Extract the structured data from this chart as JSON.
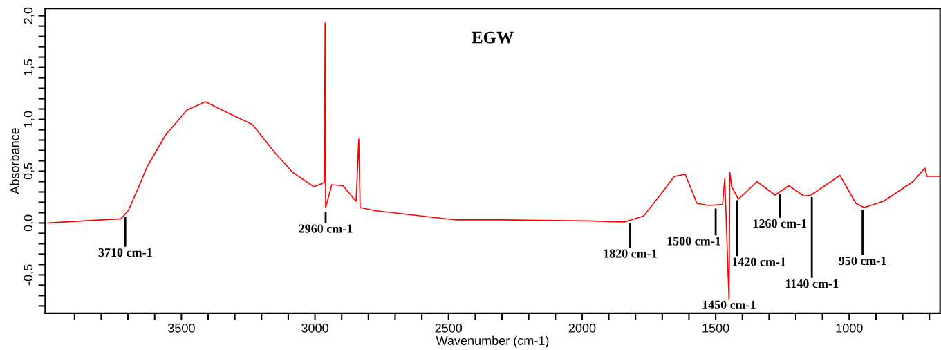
{
  "chart_data": {
    "type": "line",
    "title": "EGW",
    "xlabel": "Wavenumber (cm-1)",
    "ylabel": "Absorbance",
    "x": [
      4000,
      3727,
      3699,
      3658,
      3629,
      3559,
      3479,
      3410,
      3332,
      3234,
      3154,
      3084,
      3004,
      2965,
      2962,
      2960,
      2937,
      2895,
      2846,
      2836,
      2831,
      2776,
      2472,
      2300,
      1983,
      1841,
      1769,
      1699,
      1655,
      1614,
      1570,
      1526,
      1474,
      1466,
      1450,
      1447,
      1440,
      1415,
      1345,
      1278,
      1226,
      1169,
      1143,
      1035,
      975,
      944,
      872,
      761,
      717,
      709,
      663
    ],
    "series": [
      {
        "color": "#ff0000",
        "values": [
          0.0,
          0.04,
          0.12,
          0.36,
          0.54,
          0.85,
          1.09,
          1.17,
          1.07,
          0.95,
          0.69,
          0.49,
          0.35,
          0.39,
          1.93,
          0.15,
          0.37,
          0.36,
          0.21,
          0.81,
          0.15,
          0.12,
          0.03,
          0.03,
          0.02,
          0.01,
          0.07,
          0.3,
          0.45,
          0.47,
          0.19,
          0.17,
          0.18,
          0.43,
          -0.74,
          0.49,
          0.35,
          0.23,
          0.4,
          0.27,
          0.36,
          0.26,
          0.27,
          0.46,
          0.19,
          0.15,
          0.21,
          0.4,
          0.53,
          0.45,
          0.45
        ]
      }
    ],
    "xlim": [
      4010,
      660
    ],
    "ylim": [
      -0.87,
      2.07
    ],
    "xticks": [
      {
        "value": 3900,
        "label": null
      },
      {
        "value": 3800,
        "label": null
      },
      {
        "value": 3700,
        "label": null
      },
      {
        "value": 3600,
        "label": null
      },
      3500,
      {
        "value": 3400,
        "label": null
      },
      {
        "value": 3300,
        "label": null
      },
      {
        "value": 3200,
        "label": null
      },
      {
        "value": 3100,
        "label": null
      },
      3000,
      {
        "value": 2900,
        "label": null
      },
      {
        "value": 2800,
        "label": null
      },
      {
        "value": 2700,
        "label": null
      },
      {
        "value": 2600,
        "label": null
      },
      2500,
      {
        "value": 2400,
        "label": null
      },
      {
        "value": 2300,
        "label": null
      },
      {
        "value": 2200,
        "label": null
      },
      {
        "value": 2100,
        "label": null
      },
      2000,
      {
        "value": 1900,
        "label": null
      },
      {
        "value": 1800,
        "label": null
      },
      {
        "value": 1700,
        "label": null
      },
      {
        "value": 1600,
        "label": null
      },
      1500,
      {
        "value": 1400,
        "label": null
      },
      {
        "value": 1300,
        "label": null
      },
      {
        "value": 1200,
        "label": null
      },
      {
        "value": 1100,
        "label": null
      },
      1000,
      {
        "value": 900,
        "label": null
      },
      {
        "value": 800,
        "label": null
      },
      {
        "value": 700,
        "label": null
      }
    ],
    "yticks": [
      {
        "value": -0.8,
        "label": null
      },
      {
        "value": -0.7,
        "label": null
      },
      {
        "value": -0.6,
        "label": null
      },
      {
        "value": -0.5,
        "label": "-0,5"
      },
      {
        "value": -0.4,
        "label": null
      },
      {
        "value": -0.3,
        "label": null
      },
      {
        "value": -0.2,
        "label": null
      },
      {
        "value": -0.1,
        "label": null
      },
      {
        "value": 0.0,
        "label": "0,0"
      },
      {
        "value": 0.1,
        "label": null
      },
      {
        "value": 0.2,
        "label": null
      },
      {
        "value": 0.3,
        "label": null
      },
      {
        "value": 0.4,
        "label": null
      },
      {
        "value": 0.5,
        "label": "0,5"
      },
      {
        "value": 0.6,
        "label": null
      },
      {
        "value": 0.7,
        "label": null
      },
      {
        "value": 0.8,
        "label": null
      },
      {
        "value": 0.9,
        "label": null
      },
      {
        "value": 1.0,
        "label": "1,0"
      },
      {
        "value": 1.1,
        "label": null
      },
      {
        "value": 1.2,
        "label": null
      },
      {
        "value": 1.3,
        "label": null
      },
      {
        "value": 1.4,
        "label": null
      },
      {
        "value": 1.5,
        "label": "1,5"
      },
      {
        "value": 1.6,
        "label": null
      },
      {
        "value": 1.7,
        "label": null
      },
      {
        "value": 1.8,
        "label": null
      },
      {
        "value": 1.9,
        "label": null
      },
      {
        "value": 2.0,
        "label": "2,0"
      }
    ],
    "grid": false,
    "marker": "none",
    "line_style": "solid",
    "annotations": [
      {
        "text": "3710 cm-1",
        "x": 3710,
        "y": 0.09
      },
      {
        "text": "2960 cm-1",
        "x": 2960,
        "y": 0.15
      },
      {
        "text": "1820 cm-1",
        "x": 1820,
        "y": 0.03
      },
      {
        "text": "1500 cm-1",
        "x": 1500,
        "y": 0.17
      },
      {
        "text": "1450 cm-1",
        "x": 1450,
        "y": -0.74
      },
      {
        "text": "1420 cm-1",
        "x": 1420,
        "y": 0.25
      },
      {
        "text": "1260 cm-1",
        "x": 1260,
        "y": 0.3
      },
      {
        "text": "1140 cm-1",
        "x": 1140,
        "y": 0.28
      },
      {
        "text": "950 cm-1",
        "x": 950,
        "y": 0.15
      }
    ]
  }
}
